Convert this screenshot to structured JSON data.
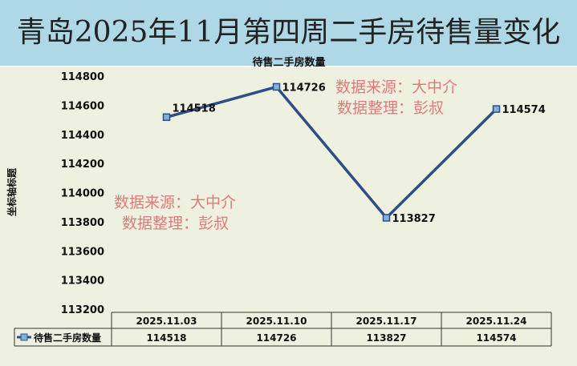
{
  "title": "青岛2025年11月第四周二手房待售量变化",
  "watermark": {
    "line1": "数据来源：大中介",
    "line2": "数据整理：彭叔"
  },
  "chart_data": {
    "type": "line",
    "title": "待售二手房数量",
    "ylabel": "坐标轴标题",
    "xlabel": "",
    "categories": [
      "2025.11.03",
      "2025.11.10",
      "2025.11.17",
      "2025.11.24"
    ],
    "series": [
      {
        "name": "待售二手房数量",
        "values": [
          114518,
          114726,
          113827,
          114574
        ]
      }
    ],
    "ylim": [
      113200,
      114800
    ],
    "yticks": [
      113200,
      113400,
      113600,
      113800,
      114000,
      114200,
      114400,
      114600,
      114800
    ],
    "grid": false,
    "legend": "data-table",
    "colors": {
      "line": "#2e4f86",
      "marker": "#7fb2d8"
    }
  }
}
